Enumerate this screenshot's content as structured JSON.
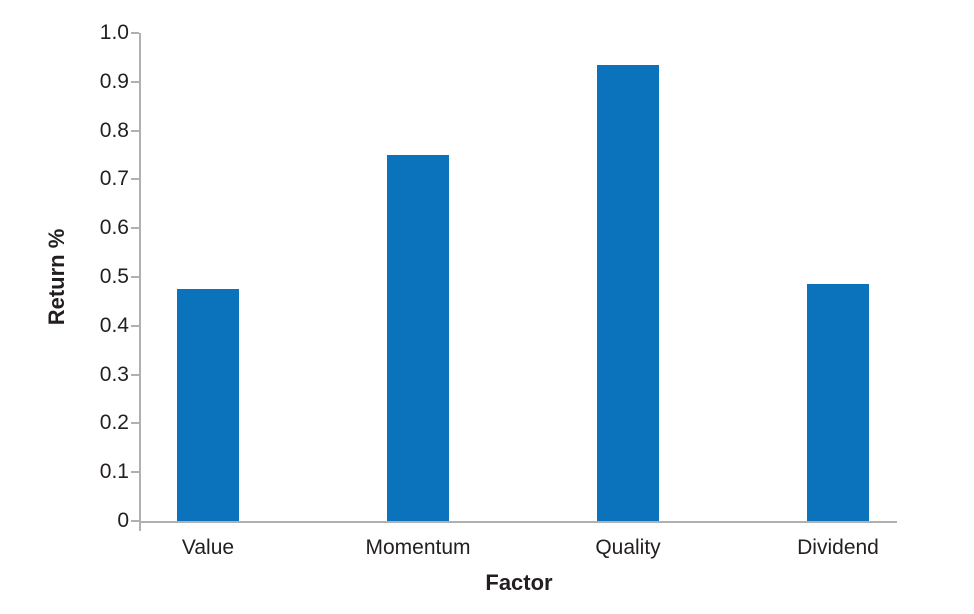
{
  "chart_data": {
    "type": "bar",
    "title": "",
    "categories": [
      "Value",
      "Momentum",
      "Quality",
      "Dividend"
    ],
    "values": [
      0.475,
      0.75,
      0.935,
      0.485
    ],
    "xlabel": "Factor",
    "ylabel": "Return %",
    "ylim": [
      0,
      1.0
    ],
    "ytick_step": 0.1,
    "ytick_labels": [
      "0",
      "0.1",
      "0.2",
      "0.3",
      "0.4",
      "0.5",
      "0.6",
      "0.7",
      "0.8",
      "0.9",
      "1.0"
    ],
    "grid": false,
    "legend": "none",
    "colors": {
      "bar": "#0a73bc",
      "axis": "#b0b0b0",
      "text": "#231f20",
      "background": "#ffffff"
    }
  }
}
